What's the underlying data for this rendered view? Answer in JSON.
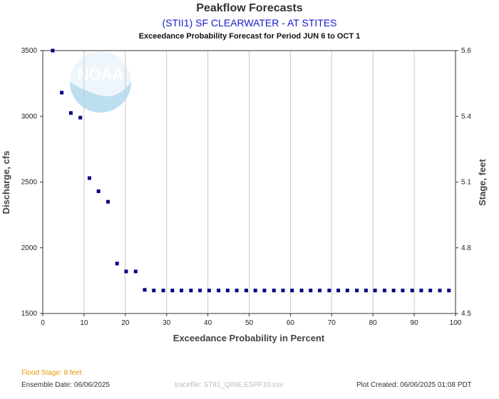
{
  "header": {
    "title": "Peakflow Forecasts",
    "subtitle": "(STII1) SF CLEARWATER - AT STITES",
    "description": "Exceedance Probability Forecast for Period JUN 6 to OCT 1"
  },
  "footer": {
    "flood_stage": "Flood Stage: 8 feet",
    "ensemble_date": "Ensemble Date: 06/06/2025",
    "tracefile": "tracefile: STII1_QINE.ESPF10.csv",
    "plot_created": "Plot Created: 06/06/2025 01:08 PDT"
  },
  "logo": {
    "text": "NOAA"
  },
  "chart_data": {
    "type": "scatter",
    "title": "Peakflow Forecasts",
    "xlabel": "Exceedance Probability in Percent",
    "ylabel": "Discharge, cfs",
    "y2label": "Stage, feet",
    "xlim": [
      0,
      100
    ],
    "ylim": [
      1500,
      3500
    ],
    "x_ticks": [
      0,
      10,
      20,
      30,
      40,
      50,
      60,
      70,
      80,
      90,
      100
    ],
    "y_ticks": [
      1500,
      2000,
      2500,
      3000,
      3500
    ],
    "y2_ticks": [
      "4.5",
      "4.8",
      "5.1",
      "5.4",
      "5.6"
    ],
    "y2_tick_discharge": [
      1500,
      2000,
      2500,
      3000,
      3500
    ],
    "grid": true,
    "marker_color": "#000080",
    "series": [
      {
        "points": [
          [
            2.4,
            3500
          ],
          [
            4.6,
            3180
          ],
          [
            6.8,
            3025
          ],
          [
            9.1,
            2990
          ],
          [
            11.3,
            2530
          ],
          [
            13.5,
            2430
          ],
          [
            15.8,
            2350
          ],
          [
            18.0,
            1880
          ],
          [
            20.2,
            1820
          ],
          [
            22.5,
            1820
          ],
          [
            24.7,
            1680
          ],
          [
            26.9,
            1675
          ],
          [
            29.2,
            1675
          ],
          [
            31.4,
            1675
          ],
          [
            33.6,
            1675
          ],
          [
            35.9,
            1675
          ],
          [
            38.1,
            1675
          ],
          [
            40.3,
            1675
          ],
          [
            42.6,
            1675
          ],
          [
            44.8,
            1675
          ],
          [
            47.0,
            1675
          ],
          [
            49.3,
            1675
          ],
          [
            51.5,
            1675
          ],
          [
            53.7,
            1675
          ],
          [
            56.0,
            1675
          ],
          [
            58.2,
            1675
          ],
          [
            60.4,
            1675
          ],
          [
            62.7,
            1675
          ],
          [
            64.9,
            1675
          ],
          [
            67.1,
            1675
          ],
          [
            69.4,
            1675
          ],
          [
            71.6,
            1675
          ],
          [
            73.8,
            1675
          ],
          [
            76.1,
            1675
          ],
          [
            78.3,
            1675
          ],
          [
            80.5,
            1675
          ],
          [
            82.8,
            1675
          ],
          [
            85.0,
            1675
          ],
          [
            87.2,
            1675
          ],
          [
            89.5,
            1675
          ],
          [
            91.7,
            1675
          ],
          [
            93.9,
            1675
          ],
          [
            96.2,
            1675
          ],
          [
            98.4,
            1675
          ]
        ]
      }
    ]
  }
}
